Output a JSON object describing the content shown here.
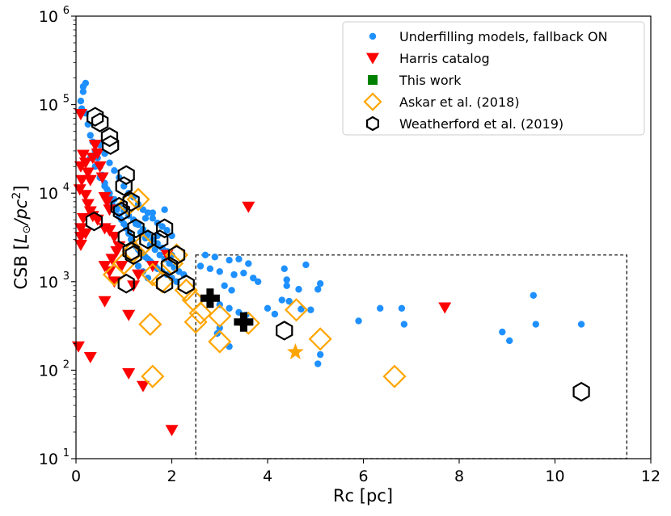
{
  "chart_data": {
    "type": "scatter",
    "xlabel": "Rc [pc]",
    "ylabel": "CSB [L⊙/pc²]",
    "ylabel_parts": {
      "prefix": "CSB [",
      "l": "L",
      "sun": "⊙",
      "per": "/pc",
      "sup": "2",
      "suffix": "]"
    },
    "xlim": [
      0,
      12
    ],
    "ylim": [
      10,
      1000000
    ],
    "yscale": "log",
    "x_ticks": [
      0,
      2,
      4,
      6,
      8,
      10,
      12
    ],
    "x_tick_labels": [
      "0",
      "2",
      "4",
      "6",
      "8",
      "10",
      "12"
    ],
    "y_ticks": [
      1,
      2,
      3,
      4,
      5,
      6
    ],
    "y_tick_labels": [
      {
        "base": "10",
        "exp": "1"
      },
      {
        "base": "10",
        "exp": "2"
      },
      {
        "base": "10",
        "exp": "3"
      },
      {
        "base": "10",
        "exp": "4"
      },
      {
        "base": "10",
        "exp": "5"
      },
      {
        "base": "10",
        "exp": "6"
      }
    ],
    "legend_position": "top-right",
    "region": {
      "x": [
        2.5,
        11.5
      ],
      "y": [
        10,
        2000
      ]
    },
    "series": [
      {
        "name": "Underfilling models, fallback ON",
        "marker": "circle",
        "color": "#1e90ff",
        "points": [
          [
            0.15,
            160000
          ],
          [
            0.2,
            175000
          ],
          [
            0.15,
            140000
          ],
          [
            0.1,
            110000
          ],
          [
            0.12,
            90000
          ],
          [
            0.2,
            80000
          ],
          [
            0.25,
            60000
          ],
          [
            0.3,
            45000
          ],
          [
            0.35,
            38000
          ],
          [
            0.4,
            30000
          ],
          [
            0.45,
            25000
          ],
          [
            0.5,
            20000
          ],
          [
            0.55,
            16000
          ],
          [
            0.6,
            13000
          ],
          [
            0.65,
            11000
          ],
          [
            0.7,
            9000
          ],
          [
            0.75,
            8000
          ],
          [
            0.8,
            7000
          ],
          [
            0.85,
            6500
          ],
          [
            0.9,
            5500
          ],
          [
            0.95,
            5000
          ],
          [
            1.0,
            4500
          ],
          [
            1.05,
            4000
          ],
          [
            1.1,
            3500
          ],
          [
            1.15,
            3000
          ],
          [
            1.2,
            2800
          ],
          [
            1.25,
            2500
          ],
          [
            1.3,
            2300
          ],
          [
            1.35,
            2100
          ],
          [
            1.4,
            2000
          ],
          [
            1.45,
            1900
          ],
          [
            1.5,
            1800
          ],
          [
            1.55,
            1700
          ],
          [
            1.6,
            1600
          ],
          [
            1.65,
            1500
          ],
          [
            1.7,
            1400
          ],
          [
            1.8,
            1300
          ],
          [
            1.9,
            1200
          ],
          [
            2.0,
            1100
          ],
          [
            2.1,
            1000
          ],
          [
            0.5,
            35000
          ],
          [
            0.6,
            28000
          ],
          [
            0.7,
            22000
          ],
          [
            0.8,
            18000
          ],
          [
            0.9,
            15000
          ],
          [
            1.0,
            12000
          ],
          [
            1.1,
            10000
          ],
          [
            1.2,
            9000
          ],
          [
            1.3,
            7500
          ],
          [
            1.4,
            6500
          ],
          [
            1.5,
            6000
          ],
          [
            1.6,
            5200
          ],
          [
            1.7,
            4600
          ],
          [
            1.8,
            4200
          ],
          [
            1.9,
            3800
          ],
          [
            2.0,
            3300
          ],
          [
            0.3,
            25000
          ],
          [
            0.4,
            20000
          ],
          [
            0.5,
            15000
          ],
          [
            0.6,
            12000
          ],
          [
            0.7,
            10000
          ],
          [
            0.8,
            8500
          ],
          [
            0.9,
            7200
          ],
          [
            1.0,
            6300
          ],
          [
            1.1,
            5600
          ],
          [
            1.2,
            5000
          ],
          [
            1.3,
            4400
          ],
          [
            1.4,
            3900
          ],
          [
            1.5,
            3400
          ],
          [
            1.6,
            3000
          ],
          [
            1.7,
            2700
          ],
          [
            1.8,
            2400
          ],
          [
            1.9,
            2200
          ],
          [
            2.0,
            2000
          ],
          [
            1.25,
            4500
          ],
          [
            1.35,
            3600
          ],
          [
            1.45,
            3100
          ],
          [
            1.55,
            2600
          ],
          [
            1.65,
            2300
          ],
          [
            1.75,
            2000
          ],
          [
            1.85,
            1800
          ],
          [
            1.95,
            1600
          ],
          [
            2.05,
            1450
          ],
          [
            2.15,
            1300
          ],
          [
            2.25,
            1200
          ],
          [
            1.3,
            1500
          ],
          [
            1.4,
            1300
          ],
          [
            1.5,
            1100
          ],
          [
            1.45,
            5200
          ],
          [
            1.6,
            6000
          ],
          [
            1.85,
            6500
          ],
          [
            1.7,
            3300
          ],
          [
            2.7,
            2000
          ],
          [
            2.9,
            1900
          ],
          [
            3.2,
            1750
          ],
          [
            3.4,
            1800
          ],
          [
            3.6,
            1600
          ],
          [
            2.6,
            1500
          ],
          [
            2.8,
            1400
          ],
          [
            3.0,
            1300
          ],
          [
            3.3,
            1200
          ],
          [
            3.5,
            1250
          ],
          [
            3.7,
            1100
          ],
          [
            3.8,
            1000
          ],
          [
            4.35,
            1400
          ],
          [
            4.8,
            1550
          ],
          [
            4.4,
            1050
          ],
          [
            3.1,
            900
          ],
          [
            3.25,
            800
          ],
          [
            4.4,
            900
          ],
          [
            4.65,
            820
          ],
          [
            5.1,
            950
          ],
          [
            5.05,
            820
          ],
          [
            2.85,
            650
          ],
          [
            3.0,
            550
          ],
          [
            3.2,
            500
          ],
          [
            3.4,
            450
          ],
          [
            3.0,
            300
          ],
          [
            2.95,
            260
          ],
          [
            3.2,
            185
          ],
          [
            3.55,
            420
          ],
          [
            4.0,
            500
          ],
          [
            4.15,
            430
          ],
          [
            4.7,
            490
          ],
          [
            4.3,
            620
          ],
          [
            4.45,
            600
          ],
          [
            4.9,
            480
          ],
          [
            5.1,
            150
          ],
          [
            5.05,
            118
          ],
          [
            5.9,
            360
          ],
          [
            6.35,
            500
          ],
          [
            6.8,
            500
          ],
          [
            6.85,
            330
          ],
          [
            8.9,
            270
          ],
          [
            9.05,
            215
          ],
          [
            9.55,
            700
          ],
          [
            9.6,
            330
          ],
          [
            10.55,
            330
          ]
        ]
      },
      {
        "name": "Harris catalog",
        "marker": "triangle-down",
        "color": "#ff0000",
        "points": [
          [
            0.1,
            78000
          ],
          [
            0.1,
            20000
          ],
          [
            0.15,
            27000
          ],
          [
            0.12,
            14000
          ],
          [
            0.08,
            11000
          ],
          [
            0.2,
            22000
          ],
          [
            0.25,
            17000
          ],
          [
            0.3,
            14000
          ],
          [
            0.35,
            25000
          ],
          [
            0.4,
            35000
          ],
          [
            0.45,
            28000
          ],
          [
            0.5,
            20000
          ],
          [
            0.55,
            15000
          ],
          [
            0.6,
            9000
          ],
          [
            0.65,
            8000
          ],
          [
            0.7,
            6500
          ],
          [
            0.2,
            9500
          ],
          [
            0.25,
            7500
          ],
          [
            0.3,
            6200
          ],
          [
            0.15,
            5200
          ],
          [
            0.1,
            4000
          ],
          [
            0.1,
            3200
          ],
          [
            0.1,
            2600
          ],
          [
            0.2,
            3500
          ],
          [
            0.35,
            5500
          ],
          [
            0.6,
            4000
          ],
          [
            0.45,
            5000
          ],
          [
            0.7,
            3800
          ],
          [
            0.8,
            3200
          ],
          [
            0.9,
            2500
          ],
          [
            0.85,
            2200
          ],
          [
            0.95,
            1500
          ],
          [
            0.75,
            1800
          ],
          [
            0.6,
            1500
          ],
          [
            0.7,
            1300
          ],
          [
            0.8,
            1000
          ],
          [
            1.2,
            900
          ],
          [
            1.3,
            1200
          ],
          [
            1.6,
            1500
          ],
          [
            1.9,
            2000
          ],
          [
            0.6,
            600
          ],
          [
            1.1,
            420
          ],
          [
            0.05,
            185
          ],
          [
            0.3,
            140
          ],
          [
            1.1,
            92
          ],
          [
            1.4,
            66
          ],
          [
            2.0,
            21
          ],
          [
            3.6,
            7000
          ],
          [
            7.7,
            510
          ]
        ]
      },
      {
        "name": "This work",
        "marker": "square",
        "color": "#008000",
        "points": []
      },
      {
        "name": "Askar et al. (2018)",
        "marker": "diamond-open",
        "color": "#ffa500",
        "points": [
          [
            0.8,
            1200
          ],
          [
            1.0,
            1600
          ],
          [
            1.2,
            2200
          ],
          [
            1.3,
            8500
          ],
          [
            1.1,
            7500
          ],
          [
            1.4,
            2600
          ],
          [
            1.6,
            1200
          ],
          [
            1.8,
            1000
          ],
          [
            2.0,
            1600
          ],
          [
            2.1,
            2000
          ],
          [
            2.3,
            800
          ],
          [
            2.45,
            620
          ],
          [
            2.5,
            350
          ],
          [
            2.6,
            440
          ],
          [
            3.0,
            410
          ],
          [
            3.0,
            210
          ],
          [
            3.6,
            340
          ],
          [
            4.6,
            480
          ],
          [
            5.1,
            225
          ],
          [
            1.55,
            330
          ],
          [
            1.6,
            85
          ],
          [
            6.65,
            85
          ]
        ]
      },
      {
        "name": "Weatherford et al. (2019)",
        "marker": "hexagon-open",
        "color": "#000000",
        "points": [
          [
            0.4,
            73000
          ],
          [
            0.5,
            63000
          ],
          [
            0.7,
            43000
          ],
          [
            0.72,
            35000
          ],
          [
            0.38,
            4800
          ],
          [
            1.05,
            16000
          ],
          [
            1.0,
            12000
          ],
          [
            1.15,
            8000
          ],
          [
            0.9,
            7000
          ],
          [
            0.95,
            6200
          ],
          [
            1.25,
            4000
          ],
          [
            1.05,
            3200
          ],
          [
            1.5,
            3000
          ],
          [
            1.75,
            3000
          ],
          [
            1.85,
            4000
          ],
          [
            1.15,
            2200
          ],
          [
            1.2,
            2000
          ],
          [
            2.1,
            2000
          ],
          [
            1.95,
            1500
          ],
          [
            1.85,
            950
          ],
          [
            1.05,
            950
          ],
          [
            2.3,
            930
          ],
          [
            4.35,
            280
          ],
          [
            10.55,
            57
          ]
        ]
      },
      {
        "name": "",
        "marker": "plus-bold",
        "color": "#000000",
        "points": [
          [
            2.8,
            650
          ],
          [
            3.5,
            350
          ]
        ]
      },
      {
        "name": "",
        "marker": "star",
        "color": "#ffa500",
        "points": [
          [
            4.58,
            160
          ]
        ]
      }
    ]
  }
}
